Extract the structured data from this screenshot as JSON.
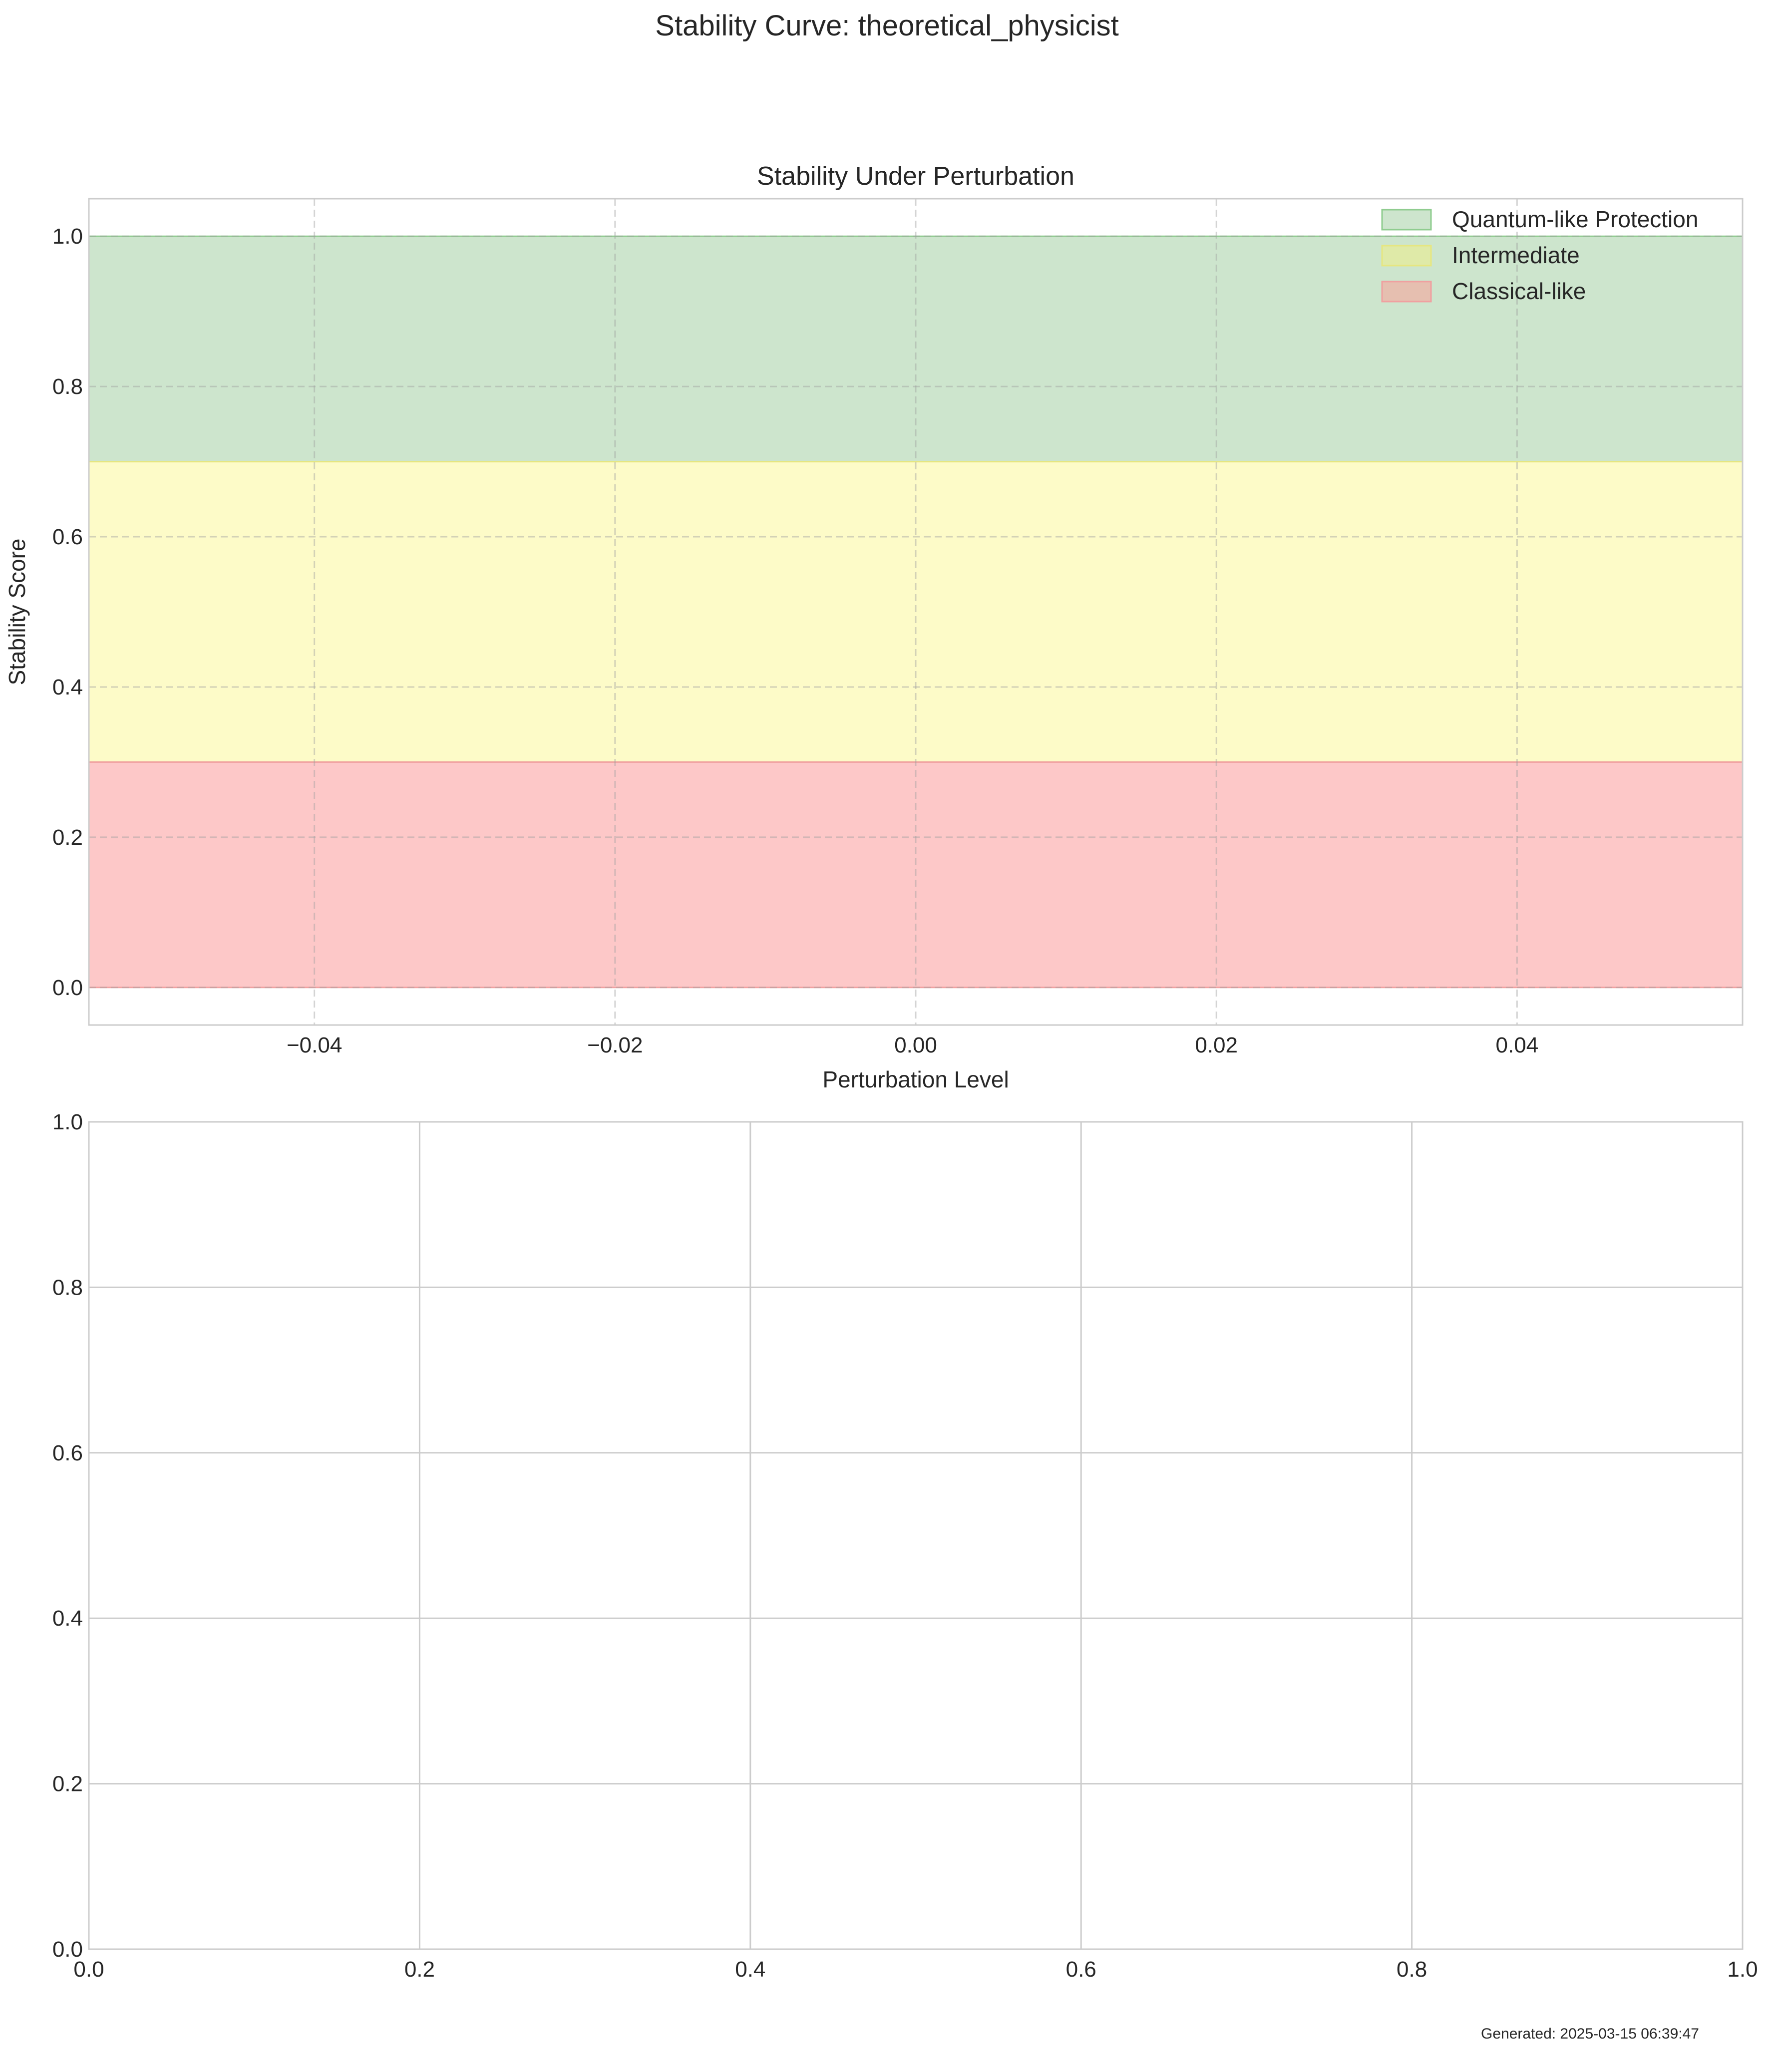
{
  "figure": {
    "suptitle": "Stability Curve: theoretical_physicist",
    "footer": "Generated: 2025-03-15 06:39:47"
  },
  "chart_data": [
    {
      "type": "area",
      "title": "Stability Under Perturbation",
      "xlabel": "Perturbation Level",
      "ylabel": "Stability Score",
      "xlim": [
        -0.055,
        0.055
      ],
      "ylim": [
        -0.05,
        1.05
      ],
      "xticks": [
        -0.04,
        -0.02,
        0.0,
        0.02,
        0.04
      ],
      "xtick_labels": [
        "−0.04",
        "−0.02",
        "0.00",
        "0.02",
        "0.04"
      ],
      "yticks": [
        0.0,
        0.2,
        0.4,
        0.6,
        0.8,
        1.0
      ],
      "ytick_labels": [
        "0.0",
        "0.2",
        "0.4",
        "0.6",
        "0.8",
        "1.0"
      ],
      "grid": "dashed",
      "legend_position": "top-right",
      "bands": [
        {
          "name": "Quantum-like Protection",
          "y_from": 0.7,
          "y_to": 1.0,
          "color": "#cde5cd",
          "edge": "#8fcc8f",
          "legend_color": "#cde5cd"
        },
        {
          "name": "Intermediate",
          "y_from": 0.3,
          "y_to": 0.7,
          "color": "#fdfbc8",
          "edge": "#e6e680",
          "legend_color": "#dfeaa8"
        },
        {
          "name": "Classical-like",
          "y_from": 0.0,
          "y_to": 0.3,
          "color": "#fdc8c8",
          "edge": "#f0a0a0",
          "legend_color": "#e6bfb0"
        }
      ],
      "series": []
    },
    {
      "type": "line",
      "title": "",
      "xlabel": "",
      "ylabel": "",
      "xlim": [
        0.0,
        1.0
      ],
      "ylim": [
        0.0,
        1.0
      ],
      "xticks": [
        0.0,
        0.2,
        0.4,
        0.6,
        0.8,
        1.0
      ],
      "xtick_labels": [
        "0.0",
        "0.2",
        "0.4",
        "0.6",
        "0.8",
        "1.0"
      ],
      "yticks": [
        0.0,
        0.2,
        0.4,
        0.6,
        0.8,
        1.0
      ],
      "ytick_labels": [
        "0.0",
        "0.2",
        "0.4",
        "0.6",
        "0.8",
        "1.0"
      ],
      "grid": "solid",
      "series": []
    }
  ]
}
